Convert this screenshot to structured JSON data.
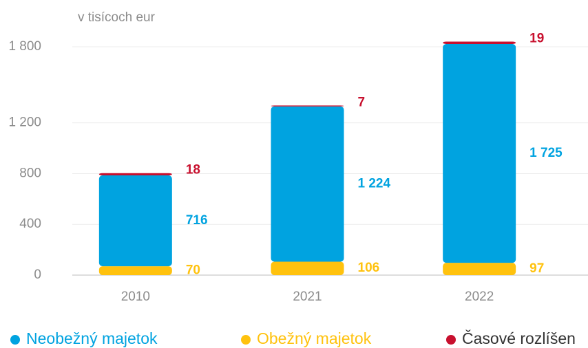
{
  "chart_data": {
    "type": "stacked_bar",
    "y_axis_label": "v tisícoch eur",
    "categories": [
      "2010",
      "2021",
      "2022"
    ],
    "series": [
      {
        "name": "Obežný majetok",
        "color": "#ffc20e",
        "values": [
          70,
          106,
          97
        ]
      },
      {
        "name": "Neobežný majetok",
        "color": "#00a3e0",
        "values": [
          716,
          1224,
          1725
        ],
        "value_labels": [
          "716",
          "1 224",
          "1 725"
        ]
      },
      {
        "name": "Časové rozlíšen",
        "color": "#c8102e",
        "values": [
          18,
          7,
          19
        ]
      }
    ],
    "legend_order": [
      1,
      0,
      2
    ],
    "ylim": [
      0,
      1800
    ],
    "yticks": [
      0,
      400,
      800,
      {
        "value": 1200,
        "label": "1 200"
      },
      {
        "value": 1800,
        "label": "1 800"
      }
    ],
    "grid": true
  }
}
